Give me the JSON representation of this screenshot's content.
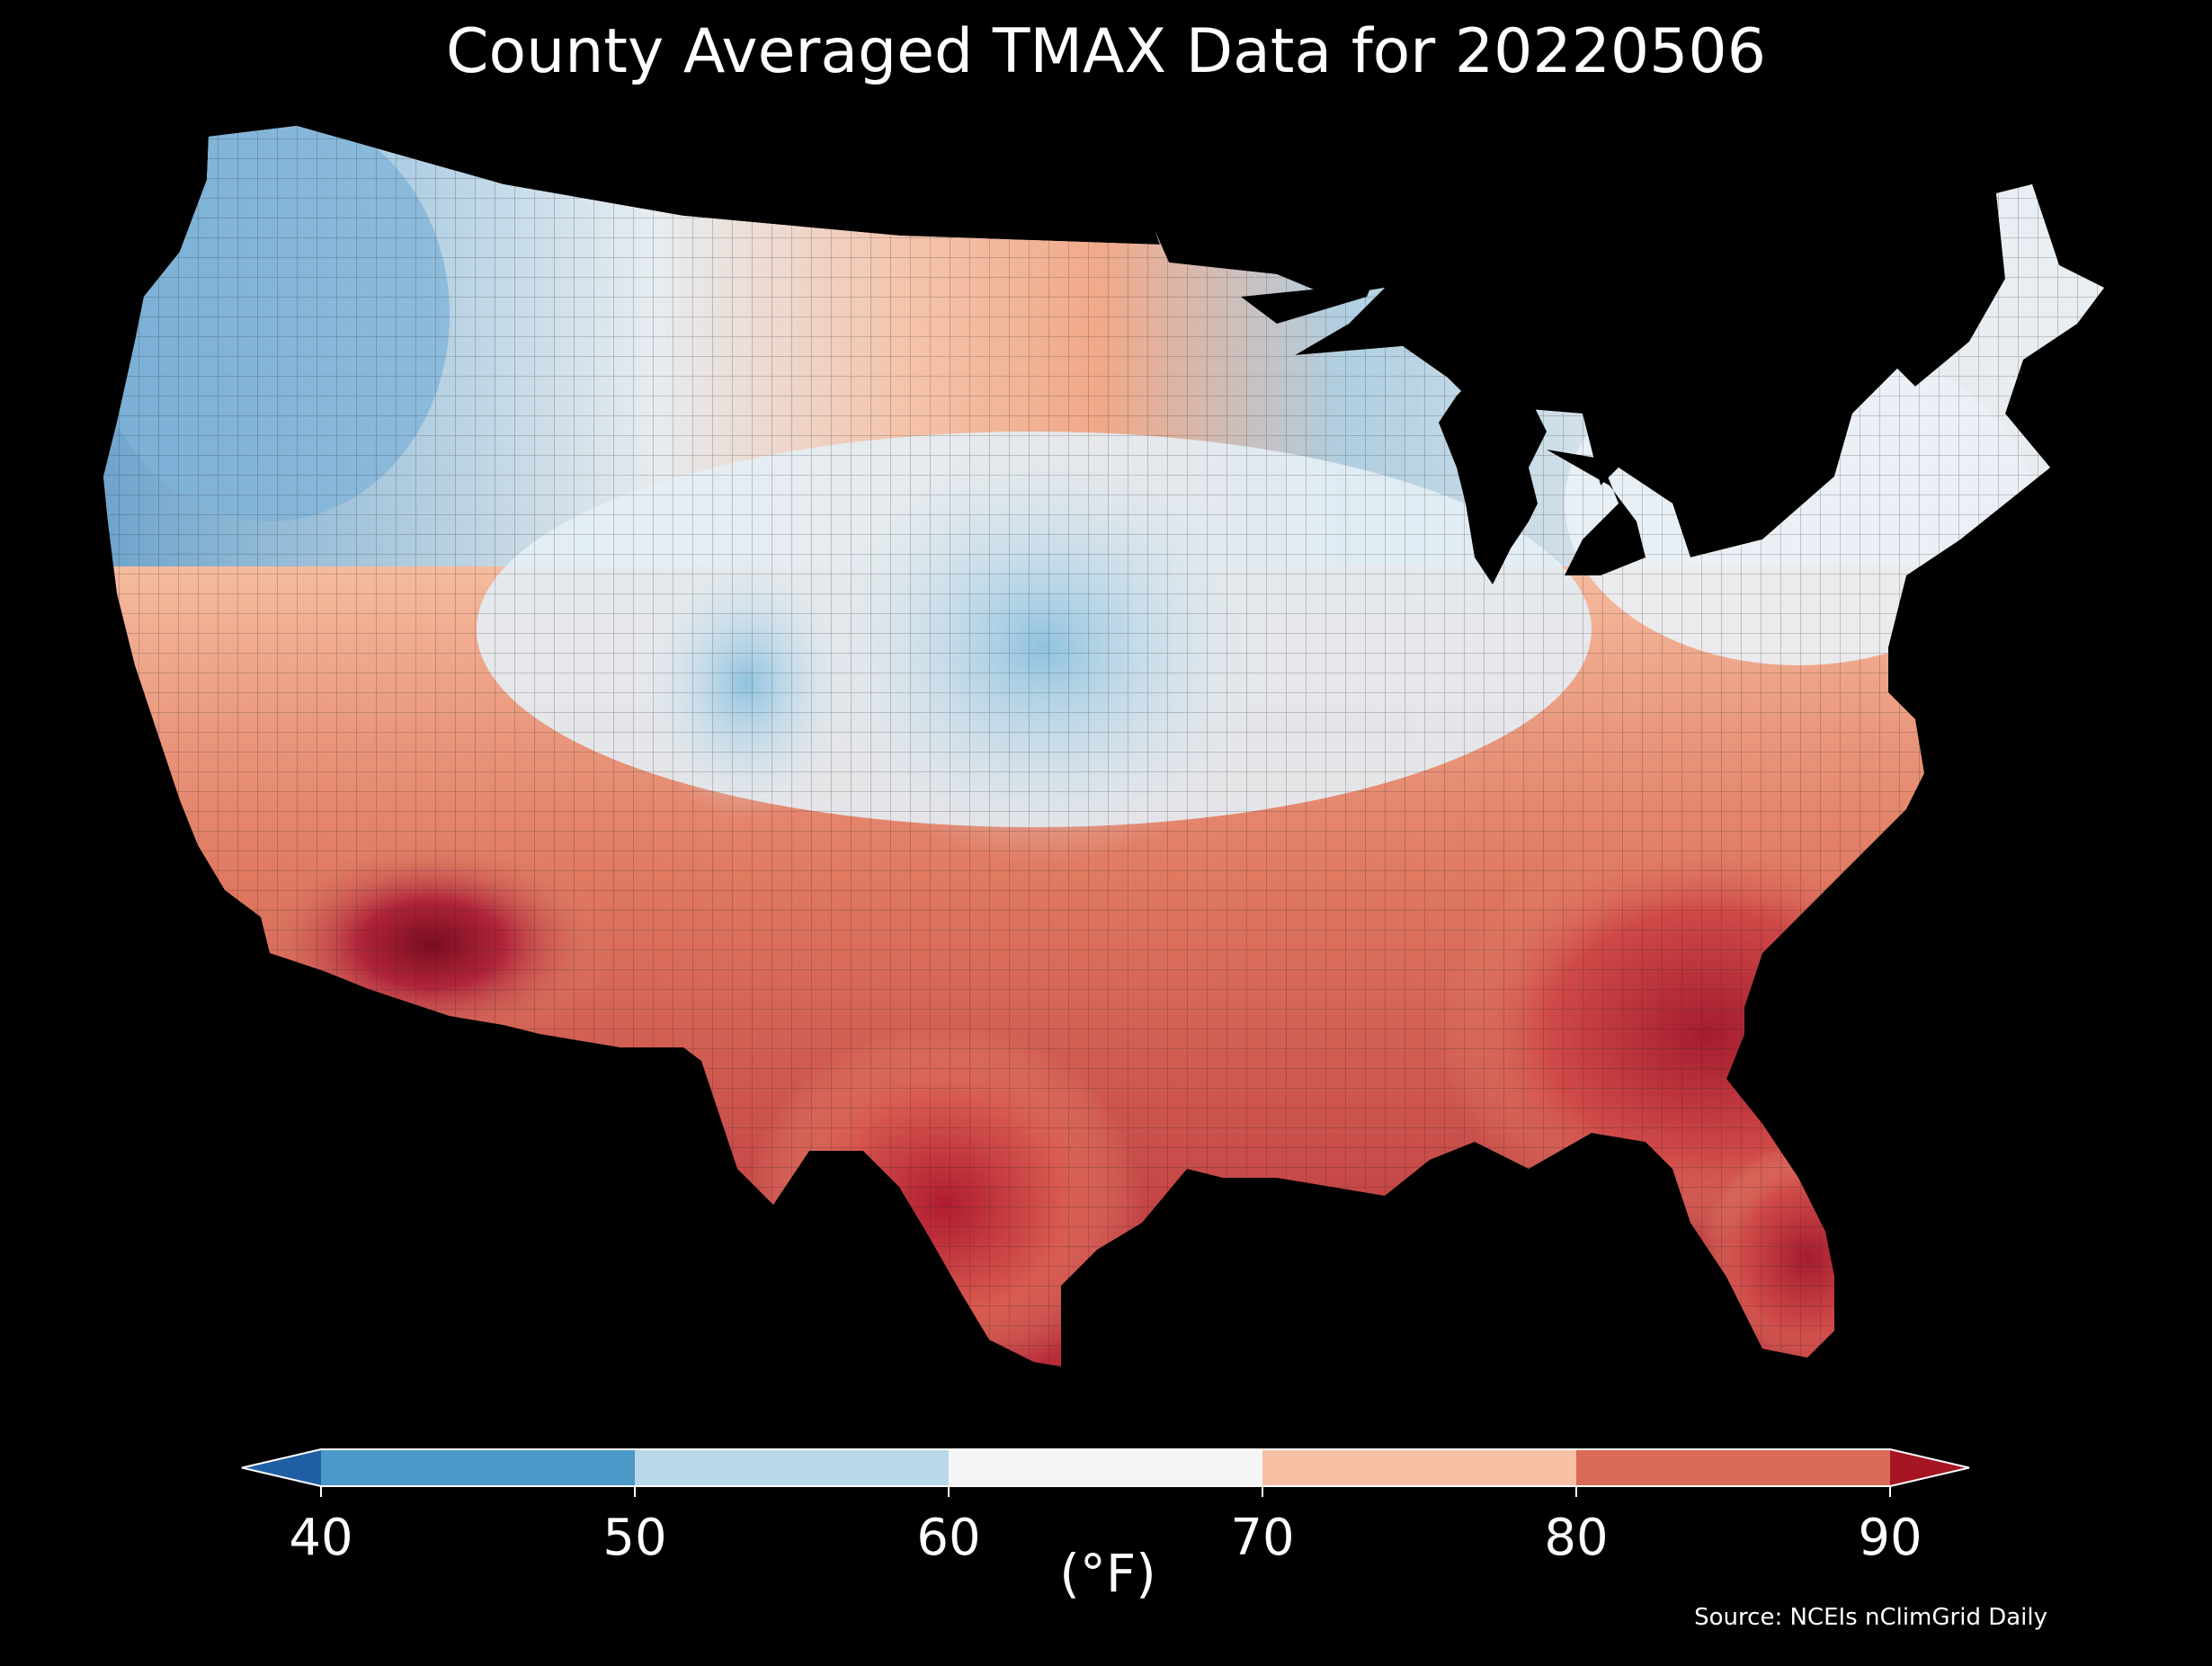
{
  "title": "County Averaged TMAX Data for 20220506",
  "colorbar": {
    "ticks": [
      "40",
      "50",
      "60",
      "70",
      "80",
      "90"
    ],
    "unit": "(°F)",
    "bins": [
      {
        "range": [
          40,
          50
        ],
        "color": "#4b98c9"
      },
      {
        "range": [
          50,
          60
        ],
        "color": "#b8d8ea"
      },
      {
        "range": [
          60,
          70
        ],
        "color": "#f5f5f5"
      },
      {
        "range": [
          70,
          80
        ],
        "color": "#f7c0a4"
      },
      {
        "range": [
          80,
          90
        ],
        "color": "#db6a58"
      }
    ],
    "under_color": "#1f5fa6",
    "over_color": "#a51524"
  },
  "source": "Source: NCEIs nClimGrid Daily",
  "map_regions": [
    {
      "region": "Pacific Northwest coast",
      "color": "#6fa9d3"
    },
    {
      "region": "Northwest interior",
      "color": "#b8d8ea"
    },
    {
      "region": "Northern Plains",
      "color": "#f2a98a"
    },
    {
      "region": "Central Plains",
      "color": "#9cc9e2"
    },
    {
      "region": "Midwest / Great Lakes",
      "color": "#dde9f1"
    },
    {
      "region": "Northeast",
      "color": "#eef2f5"
    },
    {
      "region": "Southwest desert",
      "color": "#b8283a"
    },
    {
      "region": "Texas",
      "color": "#c8343c"
    },
    {
      "region": "Southeast",
      "color": "#c8343c"
    },
    {
      "region": "Florida",
      "color": "#c0303c"
    }
  ]
}
